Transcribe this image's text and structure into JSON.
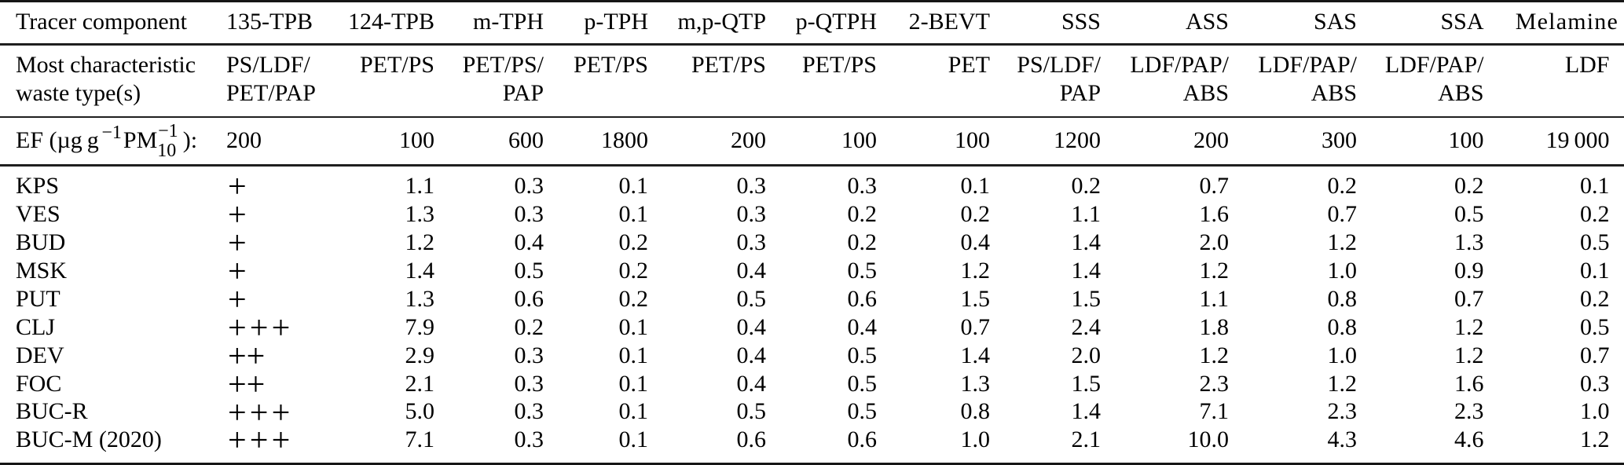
{
  "table": {
    "header": {
      "row_label": "Tracer component",
      "columns": [
        "135-TPB",
        "124-TPB",
        "m-TPH",
        "p-TPH",
        "m,p-QTP",
        "p-QTPH",
        "2-BEVT",
        "SSS",
        "ASS",
        "SAS",
        "SSA",
        "Melamine"
      ]
    },
    "waste_row": {
      "label_lines": [
        "Most characteristic",
        "waste type(s)"
      ],
      "values": [
        [
          "PS/LDF/",
          "PET/PAP"
        ],
        [
          "PET/PS"
        ],
        [
          "PET/PS/",
          "PAP"
        ],
        [
          "PET/PS"
        ],
        [
          "PET/PS"
        ],
        [
          "PET/PS"
        ],
        [
          "PET"
        ],
        [
          "PS/LDF/",
          "PAP"
        ],
        [
          "LDF/PAP/",
          "ABS"
        ],
        [
          "LDF/PAP/",
          "ABS"
        ],
        [
          "LDF/PAP/",
          "ABS"
        ],
        [
          "LDF"
        ]
      ]
    },
    "ef_row": {
      "label_parts": {
        "prefix": "EF (µg g",
        "sup1": "−1",
        "mid": "PM",
        "stack_sup": "−1",
        "stack_sub": "10",
        "suffix": "):"
      },
      "values": [
        "200",
        "100",
        "600",
        "1800",
        "200",
        "100",
        "100",
        "1200",
        "200",
        "300",
        "100",
        "19 000"
      ]
    },
    "data_rows": [
      {
        "label": "KPS",
        "tracer": "+",
        "values": [
          "1.1",
          "0.3",
          "0.1",
          "0.3",
          "0.3",
          "0.1",
          "0.2",
          "0.7",
          "0.2",
          "0.2",
          "0.1"
        ]
      },
      {
        "label": "VES",
        "tracer": "+",
        "values": [
          "1.3",
          "0.3",
          "0.1",
          "0.3",
          "0.2",
          "0.2",
          "1.1",
          "1.6",
          "0.7",
          "0.5",
          "0.2"
        ]
      },
      {
        "label": "BUD",
        "tracer": "+",
        "values": [
          "1.2",
          "0.4",
          "0.2",
          "0.3",
          "0.2",
          "0.4",
          "1.4",
          "2.0",
          "1.2",
          "1.3",
          "0.5"
        ]
      },
      {
        "label": "MSK",
        "tracer": "+",
        "values": [
          "1.4",
          "0.5",
          "0.2",
          "0.4",
          "0.5",
          "1.2",
          "1.4",
          "1.2",
          "1.0",
          "0.9",
          "0.1"
        ]
      },
      {
        "label": "PUT",
        "tracer": "+",
        "values": [
          "1.3",
          "0.6",
          "0.2",
          "0.5",
          "0.6",
          "1.5",
          "1.5",
          "1.1",
          "0.8",
          "0.7",
          "0.2"
        ]
      },
      {
        "label": "CLJ",
        "tracer": "+++",
        "values": [
          "7.9",
          "0.2",
          "0.1",
          "0.4",
          "0.4",
          "0.7",
          "2.4",
          "1.8",
          "0.8",
          "1.2",
          "0.5"
        ]
      },
      {
        "label": "DEV",
        "tracer": "++",
        "values": [
          "2.9",
          "0.3",
          "0.1",
          "0.4",
          "0.5",
          "1.4",
          "2.0",
          "1.2",
          "1.0",
          "1.2",
          "0.7"
        ]
      },
      {
        "label": "FOC",
        "tracer": "++",
        "values": [
          "2.1",
          "0.3",
          "0.1",
          "0.4",
          "0.5",
          "1.3",
          "1.5",
          "2.3",
          "1.2",
          "1.6",
          "0.3"
        ]
      },
      {
        "label": "BUC-R",
        "tracer": "+++",
        "values": [
          "5.0",
          "0.3",
          "0.1",
          "0.5",
          "0.5",
          "0.8",
          "1.4",
          "7.1",
          "2.3",
          "2.3",
          "1.0"
        ]
      },
      {
        "label": "BUC-M (2020)",
        "tracer": "+++",
        "values": [
          "7.1",
          "0.3",
          "0.1",
          "0.6",
          "0.6",
          "1.0",
          "2.1",
          "10.0",
          "4.3",
          "4.6",
          "1.2"
        ]
      }
    ]
  }
}
